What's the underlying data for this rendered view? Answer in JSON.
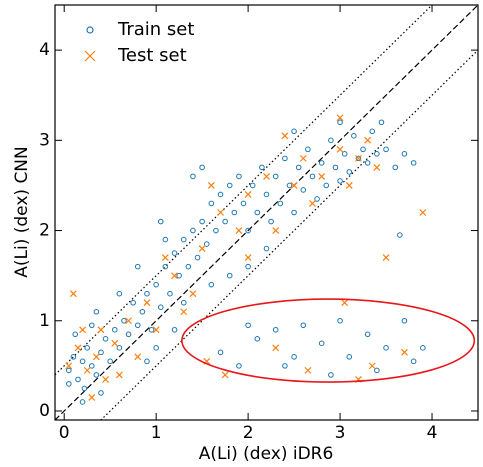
{
  "chart_data": {
    "type": "scatter",
    "xlabel": "A(Li) (dex) iDR6",
    "ylabel": "A(Li) (dex) CNN",
    "xlim": [
      -0.1,
      4.5
    ],
    "ylim": [
      -0.1,
      4.5
    ],
    "xticks": [
      0,
      1,
      2,
      3,
      4
    ],
    "yticks": [
      0,
      1,
      2,
      3,
      4
    ],
    "legend": "upper left",
    "reference_lines": [
      {
        "slope": 1,
        "intercept": 0,
        "style": "dashed",
        "color": "#000000"
      },
      {
        "slope": 1,
        "intercept": 0.5,
        "style": "dotted",
        "color": "#000000"
      },
      {
        "slope": 1,
        "intercept": -0.5,
        "style": "dotted",
        "color": "#000000"
      }
    ],
    "ellipse": {
      "center": [
        2.87,
        0.78
      ],
      "radii": [
        1.59,
        0.46
      ],
      "color": "#e8171b"
    },
    "series": [
      {
        "name": "Train set",
        "color": "#1f77b4",
        "marker": "circle",
        "x": [
          0.05,
          0.1,
          0.15,
          0.2,
          0.25,
          0.3,
          0.35,
          0.4,
          0.45,
          0.5,
          0.05,
          0.12,
          0.22,
          0.3,
          0.55,
          0.6,
          0.65,
          0.7,
          0.75,
          0.8,
          0.85,
          0.9,
          0.95,
          1.0,
          1.05,
          1.1,
          1.15,
          1.2,
          1.25,
          1.3,
          1.35,
          1.4,
          1.45,
          1.5,
          1.55,
          1.6,
          1.65,
          1.7,
          1.75,
          1.8,
          1.85,
          1.9,
          1.95,
          2.0,
          2.05,
          2.1,
          2.15,
          2.2,
          2.25,
          2.3,
          2.35,
          2.4,
          2.45,
          2.5,
          2.55,
          2.6,
          2.65,
          2.7,
          2.75,
          2.8,
          2.85,
          2.9,
          2.95,
          3.0,
          3.05,
          3.1,
          3.15,
          3.2,
          3.25,
          3.3,
          3.35,
          3.4,
          3.45,
          3.5,
          3.6,
          3.7,
          1.3,
          1.0,
          0.9,
          1.2,
          1.1,
          0.8,
          1.4,
          1.6,
          2.0,
          2.2,
          1.8,
          1.7,
          1.9,
          2.1,
          2.3,
          2.5,
          2.6,
          2.8,
          2.9,
          3.0,
          3.1,
          3.3,
          3.4,
          3.5,
          3.7,
          3.8,
          3.9,
          2.4,
          2.0,
          3.65,
          3.8,
          1.5,
          0.6,
          0.4,
          0.2,
          0.35,
          1.05,
          2.5,
          3.0
        ],
        "values": [
          0.45,
          0.6,
          0.35,
          0.55,
          0.7,
          0.5,
          0.4,
          0.65,
          0.8,
          0.55,
          0.3,
          0.85,
          0.25,
          0.95,
          0.9,
          0.7,
          1.0,
          0.85,
          1.2,
          0.95,
          1.1,
          1.3,
          0.9,
          1.4,
          1.15,
          1.6,
          1.3,
          1.75,
          1.5,
          1.9,
          1.6,
          2.0,
          1.7,
          2.1,
          1.85,
          2.3,
          2.0,
          2.4,
          2.1,
          2.5,
          2.2,
          2.6,
          2.3,
          2.0,
          2.5,
          2.2,
          2.7,
          2.4,
          2.1,
          2.6,
          2.3,
          2.8,
          2.5,
          2.2,
          2.7,
          2.45,
          2.9,
          2.6,
          2.35,
          2.75,
          2.5,
          3.0,
          2.7,
          2.55,
          2.85,
          2.65,
          3.05,
          2.8,
          2.9,
          2.75,
          3.1,
          2.85,
          3.2,
          2.9,
          2.7,
          2.85,
          1.2,
          0.7,
          0.55,
          0.9,
          1.9,
          1.6,
          2.6,
          1.4,
          1.6,
          1.8,
          1.5,
          0.65,
          0.5,
          0.8,
          0.9,
          0.6,
          0.95,
          0.75,
          0.4,
          1.0,
          0.6,
          0.85,
          0.45,
          0.7,
          1.0,
          0.55,
          0.7,
          0.5,
          0.95,
          1.95,
          2.75,
          2.7,
          1.3,
          0.2,
          0.1,
          1.1,
          2.1,
          3.1,
          3.2
        ]
      },
      {
        "name": "Test set",
        "color": "#ff7f0e",
        "marker": "x",
        "x": [
          0.05,
          0.15,
          0.25,
          0.35,
          0.45,
          0.55,
          0.1,
          0.3,
          0.7,
          0.9,
          1.0,
          1.2,
          1.3,
          1.5,
          1.6,
          1.7,
          1.9,
          2.0,
          2.2,
          2.3,
          2.5,
          2.6,
          2.7,
          2.8,
          3.0,
          3.1,
          3.2,
          3.3,
          3.4,
          3.0,
          2.4,
          1.4,
          1.1,
          0.8,
          1.75,
          2.3,
          2.65,
          3.2,
          3.35,
          3.05,
          3.7,
          1.55,
          3.9,
          3.5,
          2.0,
          0.6,
          0.2,
          0.4
        ],
        "values": [
          0.5,
          0.7,
          0.45,
          0.6,
          0.35,
          0.75,
          1.3,
          0.15,
          1.0,
          1.2,
          0.9,
          1.5,
          1.1,
          1.8,
          2.5,
          2.2,
          2.0,
          2.4,
          2.6,
          2.0,
          2.5,
          2.8,
          2.3,
          2.6,
          2.9,
          2.5,
          2.8,
          3.0,
          2.7,
          3.25,
          3.05,
          1.3,
          1.7,
          0.6,
          0.4,
          0.7,
          0.45,
          0.35,
          0.5,
          1.2,
          0.65,
          0.55,
          2.2,
          1.7,
          1.7,
          0.4,
          0.9,
          0.9
        ]
      }
    ]
  }
}
